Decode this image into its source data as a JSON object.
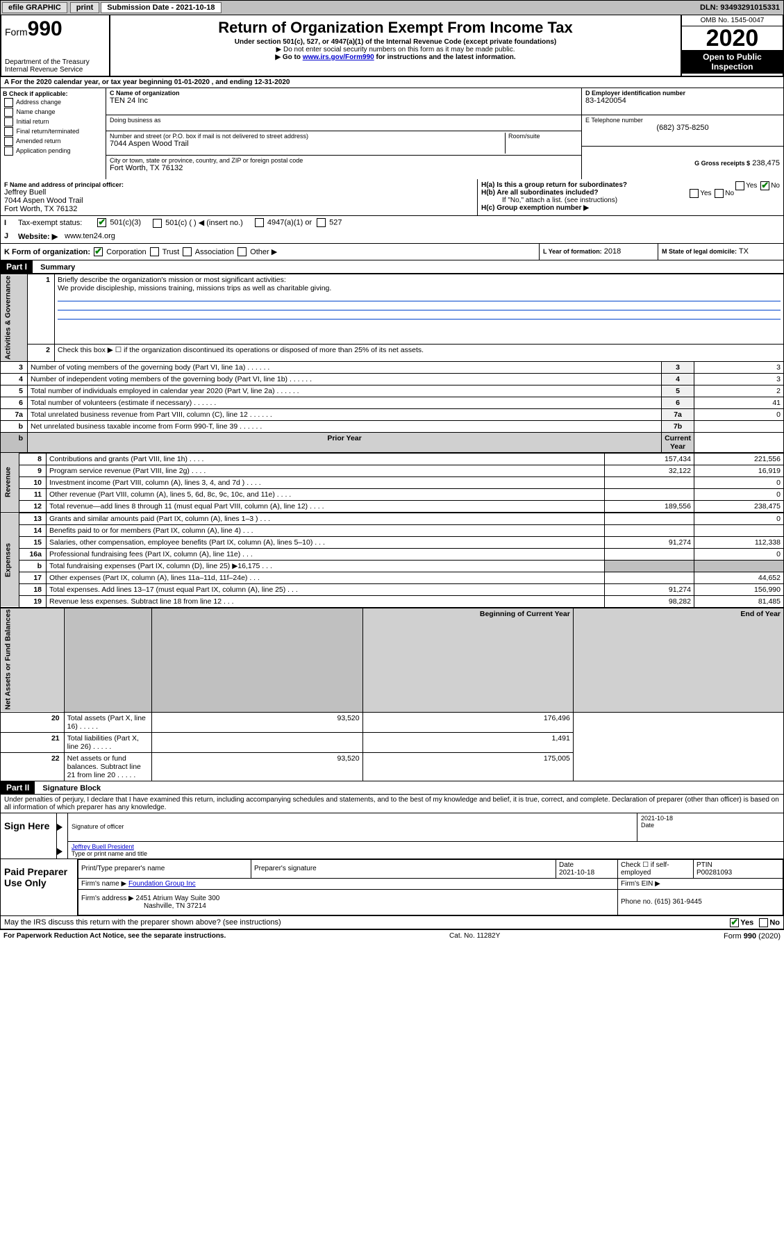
{
  "topbar": {
    "efile": "efile GRAPHIC",
    "print": "print",
    "sub_label": "Submission Date - 2021-10-18",
    "dln": "DLN: 93493291015331"
  },
  "header": {
    "form_prefix": "Form",
    "form_num": "990",
    "dept": "Department of the Treasury Internal Revenue Service",
    "title": "Return of Organization Exempt From Income Tax",
    "subtitle": "Under section 501(c), 527, or 4947(a)(1) of the Internal Revenue Code (except private foundations)",
    "note1": "▶ Do not enter social security numbers on this form as it may be made public.",
    "note2_pre": "▶ Go to ",
    "note2_link": "www.irs.gov/Form990",
    "note2_post": " for instructions and the latest information.",
    "omb": "OMB No. 1545-0047",
    "year": "2020",
    "open": "Open to Public Inspection"
  },
  "row_a": "A For the 2020 calendar year, or tax year beginning 01-01-2020    , and ending 12-31-2020",
  "box_b": {
    "label": "B Check if applicable:",
    "items": [
      "Address change",
      "Name change",
      "Initial return",
      "Final return/terminated",
      "Amended return",
      "Application pending"
    ]
  },
  "box_c": {
    "name_label": "C Name of organization",
    "name": "TEN 24 Inc",
    "dba_label": "Doing business as",
    "addr_label": "Number and street (or P.O. box if mail is not delivered to street address)",
    "room_label": "Room/suite",
    "addr": "7044 Aspen Wood Trail",
    "city_label": "City or town, state or province, country, and ZIP or foreign postal code",
    "city": "Fort Worth, TX  76132"
  },
  "box_d": {
    "label": "D Employer identification number",
    "val": "83-1420054"
  },
  "box_e": {
    "label": "E Telephone number",
    "val": "(682) 375-8250"
  },
  "box_g": {
    "label": "G Gross receipts $",
    "val": "238,475"
  },
  "box_f": {
    "label": "F Name and address of principal officer:",
    "name": "Jeffrey Buell",
    "addr1": "7044 Aspen Wood Trail",
    "addr2": "Fort Worth, TX  76132"
  },
  "box_h": {
    "a": "H(a)  Is this a group return for subordinates?",
    "b": "H(b)  Are all subordinates included?",
    "b_note": "If \"No,\" attach a list. (see instructions)",
    "c": "H(c)  Group exemption number ▶",
    "yes": "Yes",
    "no": "No"
  },
  "box_i": {
    "label": "Tax-exempt status:",
    "opts": [
      "501(c)(3)",
      "501(c) (  ) ◀ (insert no.)",
      "4947(a)(1) or",
      "527"
    ]
  },
  "box_j": {
    "label": "Website: ▶",
    "val": "www.ten24.org"
  },
  "box_k": {
    "label": "K Form of organization:",
    "opts": [
      "Corporation",
      "Trust",
      "Association",
      "Other ▶"
    ]
  },
  "box_l": {
    "label": "L Year of formation:",
    "val": "2018"
  },
  "box_m": {
    "label": "M State of legal domicile:",
    "val": "TX"
  },
  "part1": {
    "header": "Part I",
    "title": "Summary",
    "side_gov": "Activities & Governance",
    "side_rev": "Revenue",
    "side_exp": "Expenses",
    "side_net": "Net Assets or Fund Balances",
    "line1": "Briefly describe the organization's mission or most significant activities:",
    "line1_text": "We provide discipleship, missions training, missions trips as well as charitable giving.",
    "line2": "Check this box ▶ ☐  if the organization discontinued its operations or disposed of more than 25% of its net assets.",
    "rows_gov": [
      {
        "n": "3",
        "t": "Number of voting members of the governing body (Part VI, line 1a)",
        "box": "3",
        "v": "3"
      },
      {
        "n": "4",
        "t": "Number of independent voting members of the governing body (Part VI, line 1b)",
        "box": "4",
        "v": "3"
      },
      {
        "n": "5",
        "t": "Total number of individuals employed in calendar year 2020 (Part V, line 2a)",
        "box": "5",
        "v": "2"
      },
      {
        "n": "6",
        "t": "Total number of volunteers (estimate if necessary)",
        "box": "6",
        "v": "41"
      },
      {
        "n": "7a",
        "t": "Total unrelated business revenue from Part VIII, column (C), line 12",
        "box": "7a",
        "v": "0"
      },
      {
        "n": "b",
        "t": "Net unrelated business taxable income from Form 990-T, line 39",
        "box": "7b",
        "v": ""
      }
    ],
    "prior": "Prior Year",
    "current": "Current Year",
    "beg": "Beginning of Current Year",
    "end": "End of Year",
    "rows_rev": [
      {
        "n": "8",
        "t": "Contributions and grants (Part VIII, line 1h)",
        "p": "157,434",
        "c": "221,556"
      },
      {
        "n": "9",
        "t": "Program service revenue (Part VIII, line 2g)",
        "p": "32,122",
        "c": "16,919"
      },
      {
        "n": "10",
        "t": "Investment income (Part VIII, column (A), lines 3, 4, and 7d )",
        "p": "",
        "c": "0"
      },
      {
        "n": "11",
        "t": "Other revenue (Part VIII, column (A), lines 5, 6d, 8c, 9c, 10c, and 11e)",
        "p": "",
        "c": "0"
      },
      {
        "n": "12",
        "t": "Total revenue—add lines 8 through 11 (must equal Part VIII, column (A), line 12)",
        "p": "189,556",
        "c": "238,475"
      }
    ],
    "rows_exp": [
      {
        "n": "13",
        "t": "Grants and similar amounts paid (Part IX, column (A), lines 1–3 )",
        "p": "",
        "c": "0"
      },
      {
        "n": "14",
        "t": "Benefits paid to or for members (Part IX, column (A), line 4)",
        "p": "",
        "c": ""
      },
      {
        "n": "15",
        "t": "Salaries, other compensation, employee benefits (Part IX, column (A), lines 5–10)",
        "p": "91,274",
        "c": "112,338"
      },
      {
        "n": "16a",
        "t": "Professional fundraising fees (Part IX, column (A), line 11e)",
        "p": "",
        "c": "0"
      },
      {
        "n": "b",
        "t": "Total fundraising expenses (Part IX, column (D), line 25) ▶16,175",
        "p": "GREY",
        "c": "GREY"
      },
      {
        "n": "17",
        "t": "Other expenses (Part IX, column (A), lines 11a–11d, 11f–24e)",
        "p": "",
        "c": "44,652"
      },
      {
        "n": "18",
        "t": "Total expenses. Add lines 13–17 (must equal Part IX, column (A), line 25)",
        "p": "91,274",
        "c": "156,990"
      },
      {
        "n": "19",
        "t": "Revenue less expenses. Subtract line 18 from line 12",
        "p": "98,282",
        "c": "81,485"
      }
    ],
    "rows_net": [
      {
        "n": "20",
        "t": "Total assets (Part X, line 16)",
        "p": "93,520",
        "c": "176,496"
      },
      {
        "n": "21",
        "t": "Total liabilities (Part X, line 26)",
        "p": "",
        "c": "1,491"
      },
      {
        "n": "22",
        "t": "Net assets or fund balances. Subtract line 21 from line 20",
        "p": "93,520",
        "c": "175,005"
      }
    ]
  },
  "part2": {
    "header": "Part II",
    "title": "Signature Block",
    "penalty": "Under penalties of perjury, I declare that I have examined this return, including accompanying schedules and statements, and to the best of my knowledge and belief, it is true, correct, and complete. Declaration of preparer (other than officer) is based on all information of which preparer has any knowledge.",
    "sign_here": "Sign Here",
    "sig_officer": "Signature of officer",
    "sig_date": "2021-10-18",
    "date_label": "Date",
    "officer_name": "Jeffrey Buell President",
    "type_name": "Type or print name and title",
    "paid": "Paid Preparer Use Only",
    "prep_name_label": "Print/Type preparer's name",
    "prep_sig_label": "Preparer's signature",
    "prep_date_label": "Date",
    "prep_date": "2021-10-18",
    "check_self": "Check ☐ if self-employed",
    "ptin_label": "PTIN",
    "ptin": "P00281093",
    "firm_name_label": "Firm's name    ▶",
    "firm_name": "Foundation Group Inc",
    "firm_ein_label": "Firm's EIN ▶",
    "firm_addr_label": "Firm's address ▶",
    "firm_addr1": "2451 Atrium Way Suite 300",
    "firm_addr2": "Nashville, TN  37214",
    "phone_label": "Phone no.",
    "phone": "(615) 361-9445",
    "discuss": "May the IRS discuss this return with the preparer shown above? (see instructions)",
    "yes": "Yes",
    "no": "No"
  },
  "footer": {
    "left": "For Paperwork Reduction Act Notice, see the separate instructions.",
    "mid": "Cat. No. 11282Y",
    "right": "Form 990 (2020)"
  }
}
